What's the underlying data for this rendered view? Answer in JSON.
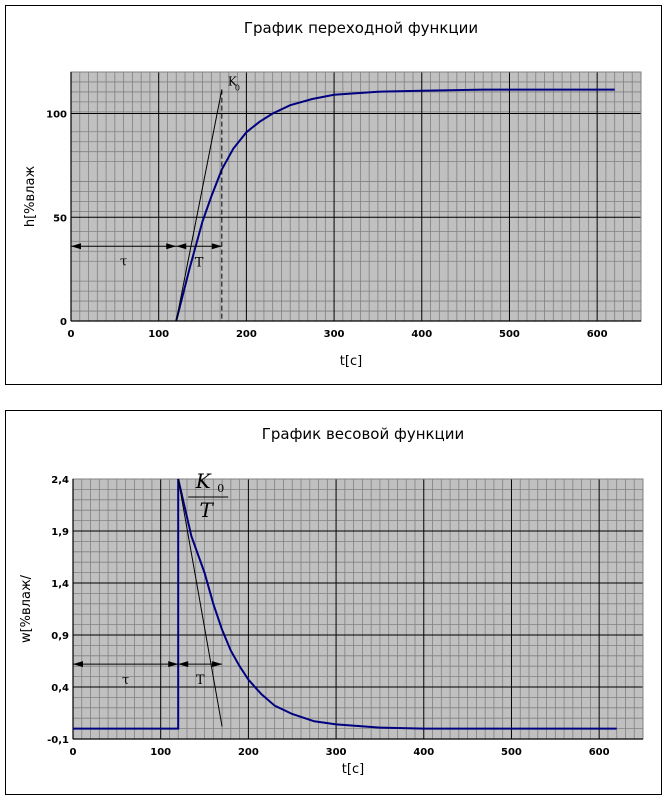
{
  "chart_data": [
    {
      "type": "line",
      "title": "График переходной функции",
      "xlabel": "t[c]",
      "ylabel": "h[%влаж",
      "xlim": [
        0,
        650
      ],
      "ylim": [
        0,
        120
      ],
      "x_ticks": [
        0,
        100,
        200,
        300,
        400,
        500,
        600
      ],
      "y_ticks": [
        0,
        50,
        100
      ],
      "x_tick_labels": [
        "0",
        "100",
        "200",
        "300",
        "400",
        "500",
        "600"
      ],
      "y_tick_labels": [
        "0",
        "50",
        "100"
      ],
      "grid": true,
      "series": [
        {
          "color": "#000080",
          "x": [
            120,
            135,
            150,
            160,
            172,
            185,
            200,
            215,
            230,
            250,
            275,
            300,
            350,
            400,
            470,
            550,
            620
          ],
          "y": [
            0,
            25,
            48,
            60,
            73,
            83,
            91,
            96,
            100,
            104,
            107,
            109,
            110.5,
            111,
            111.5,
            111.5,
            111.5
          ]
        }
      ],
      "annotations": {
        "tau_label": "τ",
        "T_label": "T",
        "K_label": "K",
        "K_sub": "0",
        "tau_range": [
          0,
          120
        ],
        "T_range": [
          120,
          172
        ],
        "arrow_y": 36,
        "tangent": {
          "x": [
            120,
            172
          ],
          "y": [
            0,
            111.5
          ]
        },
        "dashed_x": 172
      }
    },
    {
      "type": "line",
      "title": "График весовой функции",
      "xlabel": "t[c]",
      "ylabel": "w[%влаж/",
      "xlim": [
        0,
        650
      ],
      "ylim": [
        -0.1,
        2.4
      ],
      "x_ticks": [
        0,
        100,
        200,
        300,
        400,
        500,
        600
      ],
      "y_ticks": [
        -0.1,
        0.4,
        0.9,
        1.4,
        1.9,
        2.4
      ],
      "x_tick_labels": [
        "0",
        "100",
        "200",
        "300",
        "400",
        "500",
        "600"
      ],
      "y_tick_labels": [
        "-0,1",
        "0,4",
        "0,9",
        "1,4",
        "1,9",
        "2,4"
      ],
      "grid": true,
      "series": [
        {
          "color": "#000080",
          "x": [
            0,
            120,
            120,
            135,
            150,
            160,
            170,
            180,
            190,
            200,
            215,
            230,
            250,
            275,
            300,
            350,
            400,
            470,
            550,
            620
          ],
          "y": [
            0,
            0,
            2.4,
            1.85,
            1.5,
            1.2,
            0.95,
            0.75,
            0.6,
            0.47,
            0.33,
            0.22,
            0.14,
            0.07,
            0.04,
            0.01,
            0,
            0,
            0,
            0
          ]
        }
      ],
      "annotations": {
        "tau_label": "τ",
        "T_label": "T",
        "frac_num": "K",
        "frac_sub": "0",
        "frac_den": "T",
        "tau_range": [
          0,
          120
        ],
        "T_range": [
          120,
          170
        ],
        "arrow_y": 0.62,
        "tangent": {
          "x": [
            120,
            170
          ],
          "y": [
            2.4,
            0
          ]
        }
      }
    }
  ]
}
